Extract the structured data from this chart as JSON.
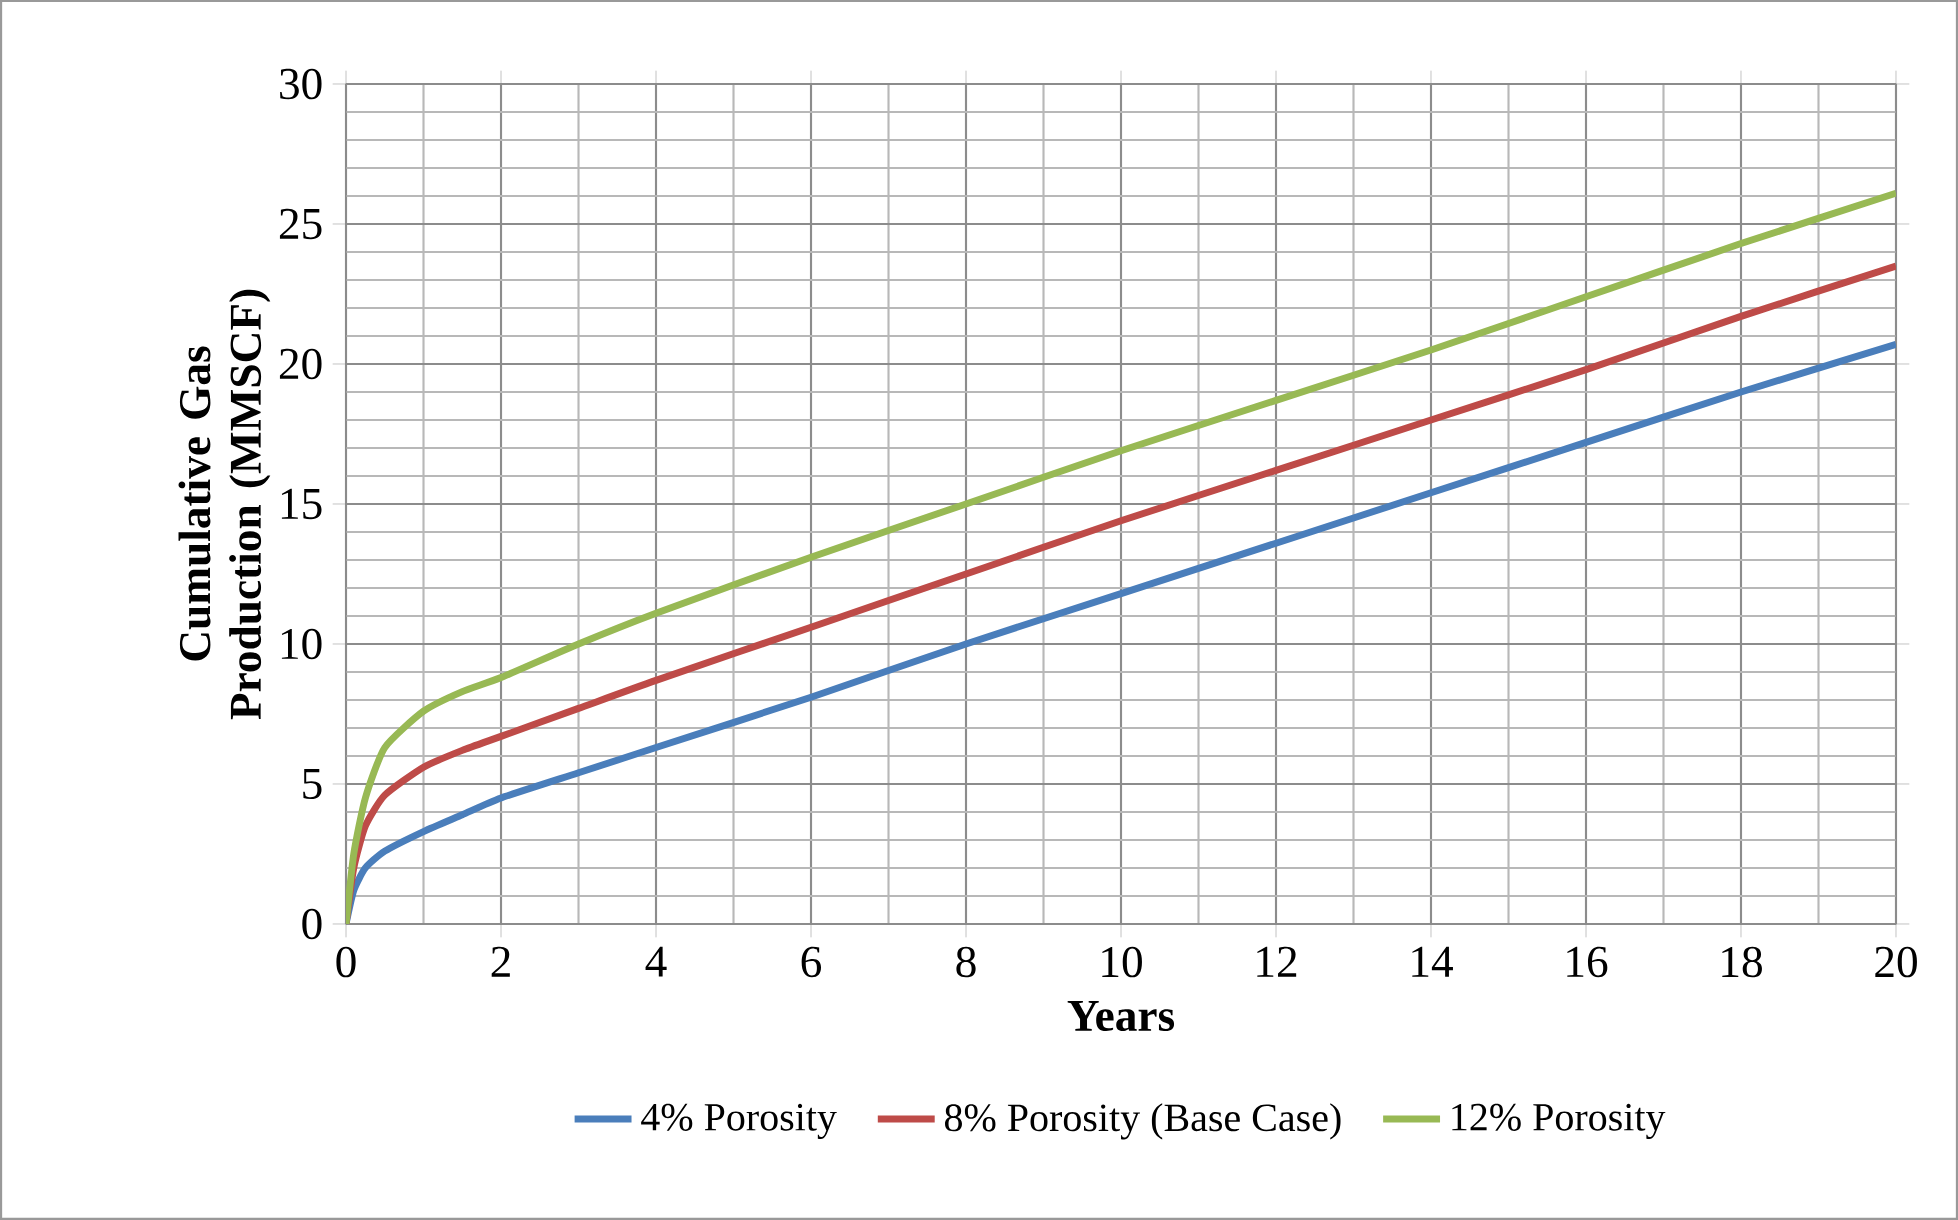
{
  "chart_data": {
    "type": "line",
    "xlabel": "Years",
    "ylabel": "Cumulative Gas Production (MMSCF)",
    "xlim": [
      0,
      20
    ],
    "xticks": [
      0,
      2,
      4,
      6,
      8,
      10,
      12,
      14,
      16,
      18,
      20
    ],
    "ylim": [
      0,
      30
    ],
    "yticks": [
      0,
      5,
      10,
      15,
      20,
      25,
      30
    ],
    "grid": true,
    "legend": "bottom",
    "marker": "none",
    "line_style": "solid",
    "x": [
      0,
      0.1,
      0.25,
      0.5,
      1,
      1.5,
      2,
      3,
      4,
      6,
      8,
      10,
      12,
      14,
      16,
      18,
      20
    ],
    "series": [
      {
        "name": "4% Porosity",
        "color": "#4a7ebb",
        "values": [
          0,
          1.2,
          2.0,
          2.6,
          3.3,
          3.9,
          4.5,
          5.4,
          6.3,
          8.1,
          10.0,
          11.8,
          13.6,
          15.4,
          17.2,
          19.0,
          20.7
        ]
      },
      {
        "name": "8% Porosity (Base Case)",
        "color": "#be4b48",
        "values": [
          0,
          2.0,
          3.5,
          4.6,
          5.6,
          6.2,
          6.7,
          7.7,
          8.7,
          10.6,
          12.5,
          14.4,
          16.2,
          18.0,
          19.8,
          21.7,
          23.5
        ]
      },
      {
        "name": "12% Porosity",
        "color": "#98b954",
        "values": [
          0,
          2.5,
          4.5,
          6.3,
          7.6,
          8.3,
          8.8,
          10.0,
          11.1,
          13.1,
          15.0,
          16.9,
          18.7,
          20.5,
          22.4,
          24.3,
          26.1
        ]
      }
    ]
  }
}
